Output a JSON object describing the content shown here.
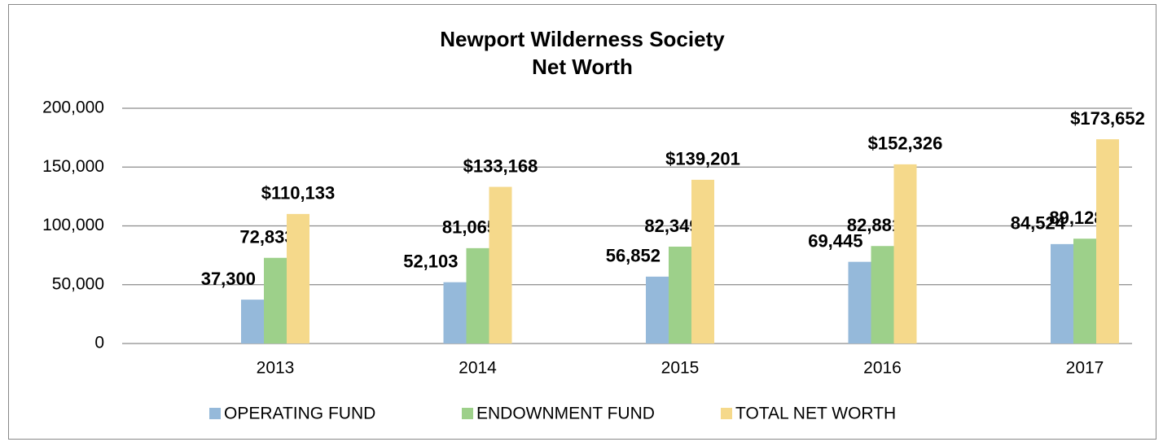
{
  "chart_data": {
    "type": "bar",
    "title": [
      "Newport Wilderness Society",
      "Net Worth"
    ],
    "categories": [
      "2013",
      "2014",
      "2015",
      "2016",
      "2017"
    ],
    "series": [
      {
        "name": "OPERATING FUND",
        "color": "#95b9da",
        "values": [
          37300,
          52103,
          56852,
          69445,
          84524
        ],
        "value_labels": [
          "37,300",
          "52,103",
          "56,852",
          "69,445",
          "84,524"
        ]
      },
      {
        "name": "ENDOWNMENT FUND",
        "color": "#9dd08a",
        "values": [
          72833,
          81065,
          82349,
          82881,
          89128
        ],
        "value_labels": [
          "72,833",
          "81,065",
          "82,349",
          "82,881",
          "89,128"
        ]
      },
      {
        "name": "TOTAL NET WORTH",
        "color": "#f5d98b",
        "values": [
          110133,
          133168,
          139201,
          152326,
          173652
        ],
        "value_labels": [
          "$110,133",
          "$133,168",
          "$139,201",
          "$152,326",
          "$173,652"
        ]
      }
    ],
    "ylim": [
      0,
      200000
    ],
    "yticks": [
      0,
      {
        "value": 50000,
        "label": "50,000"
      },
      {
        "value": 100000,
        "label": "100,000"
      },
      {
        "value": 150000,
        "label": "150,000"
      },
      {
        "value": 200000,
        "label": "200,000"
      }
    ],
    "grid": true,
    "legend": "bottom"
  }
}
